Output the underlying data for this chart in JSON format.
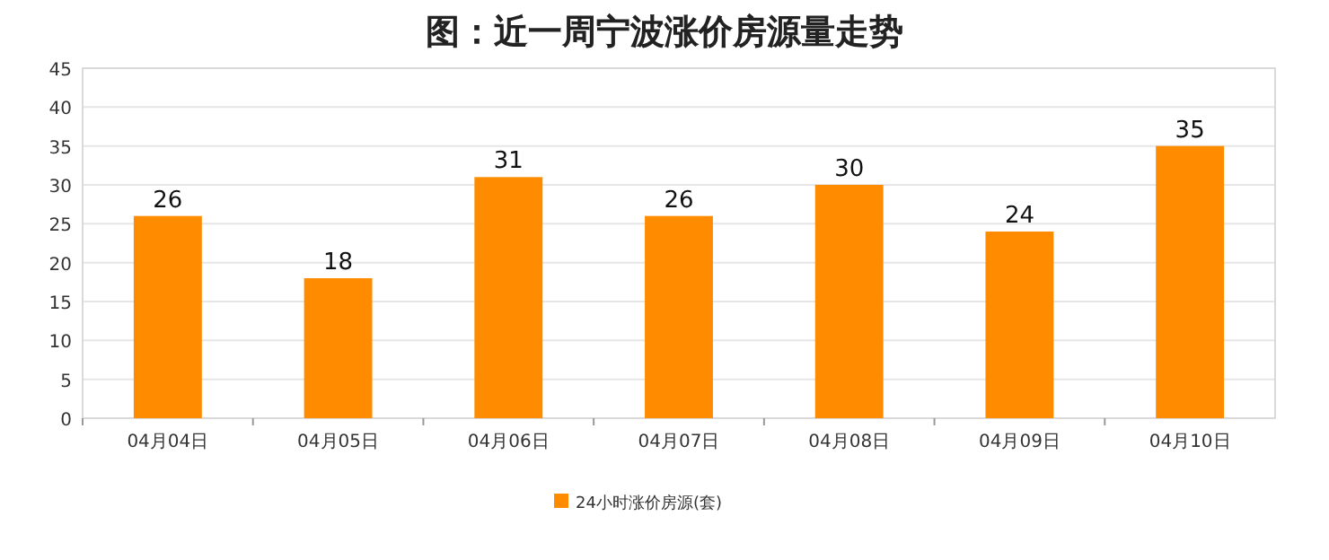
{
  "chart_data": {
    "type": "bar",
    "title": "图：近一周宁波涨价房源量走势",
    "categories": [
      "04月04日",
      "04月05日",
      "04月06日",
      "04月07日",
      "04月08日",
      "04月09日",
      "04月10日"
    ],
    "series": [
      {
        "name": "24小时涨价房源(套)",
        "color": "#ff8c00",
        "values": [
          26,
          18,
          31,
          26,
          30,
          24,
          35
        ]
      }
    ],
    "ylim": [
      0,
      45
    ],
    "yticks": [
      0,
      5,
      10,
      15,
      20,
      25,
      30,
      35,
      40,
      45
    ],
    "grid": "y",
    "data_labels": true,
    "legend": "bottom"
  }
}
